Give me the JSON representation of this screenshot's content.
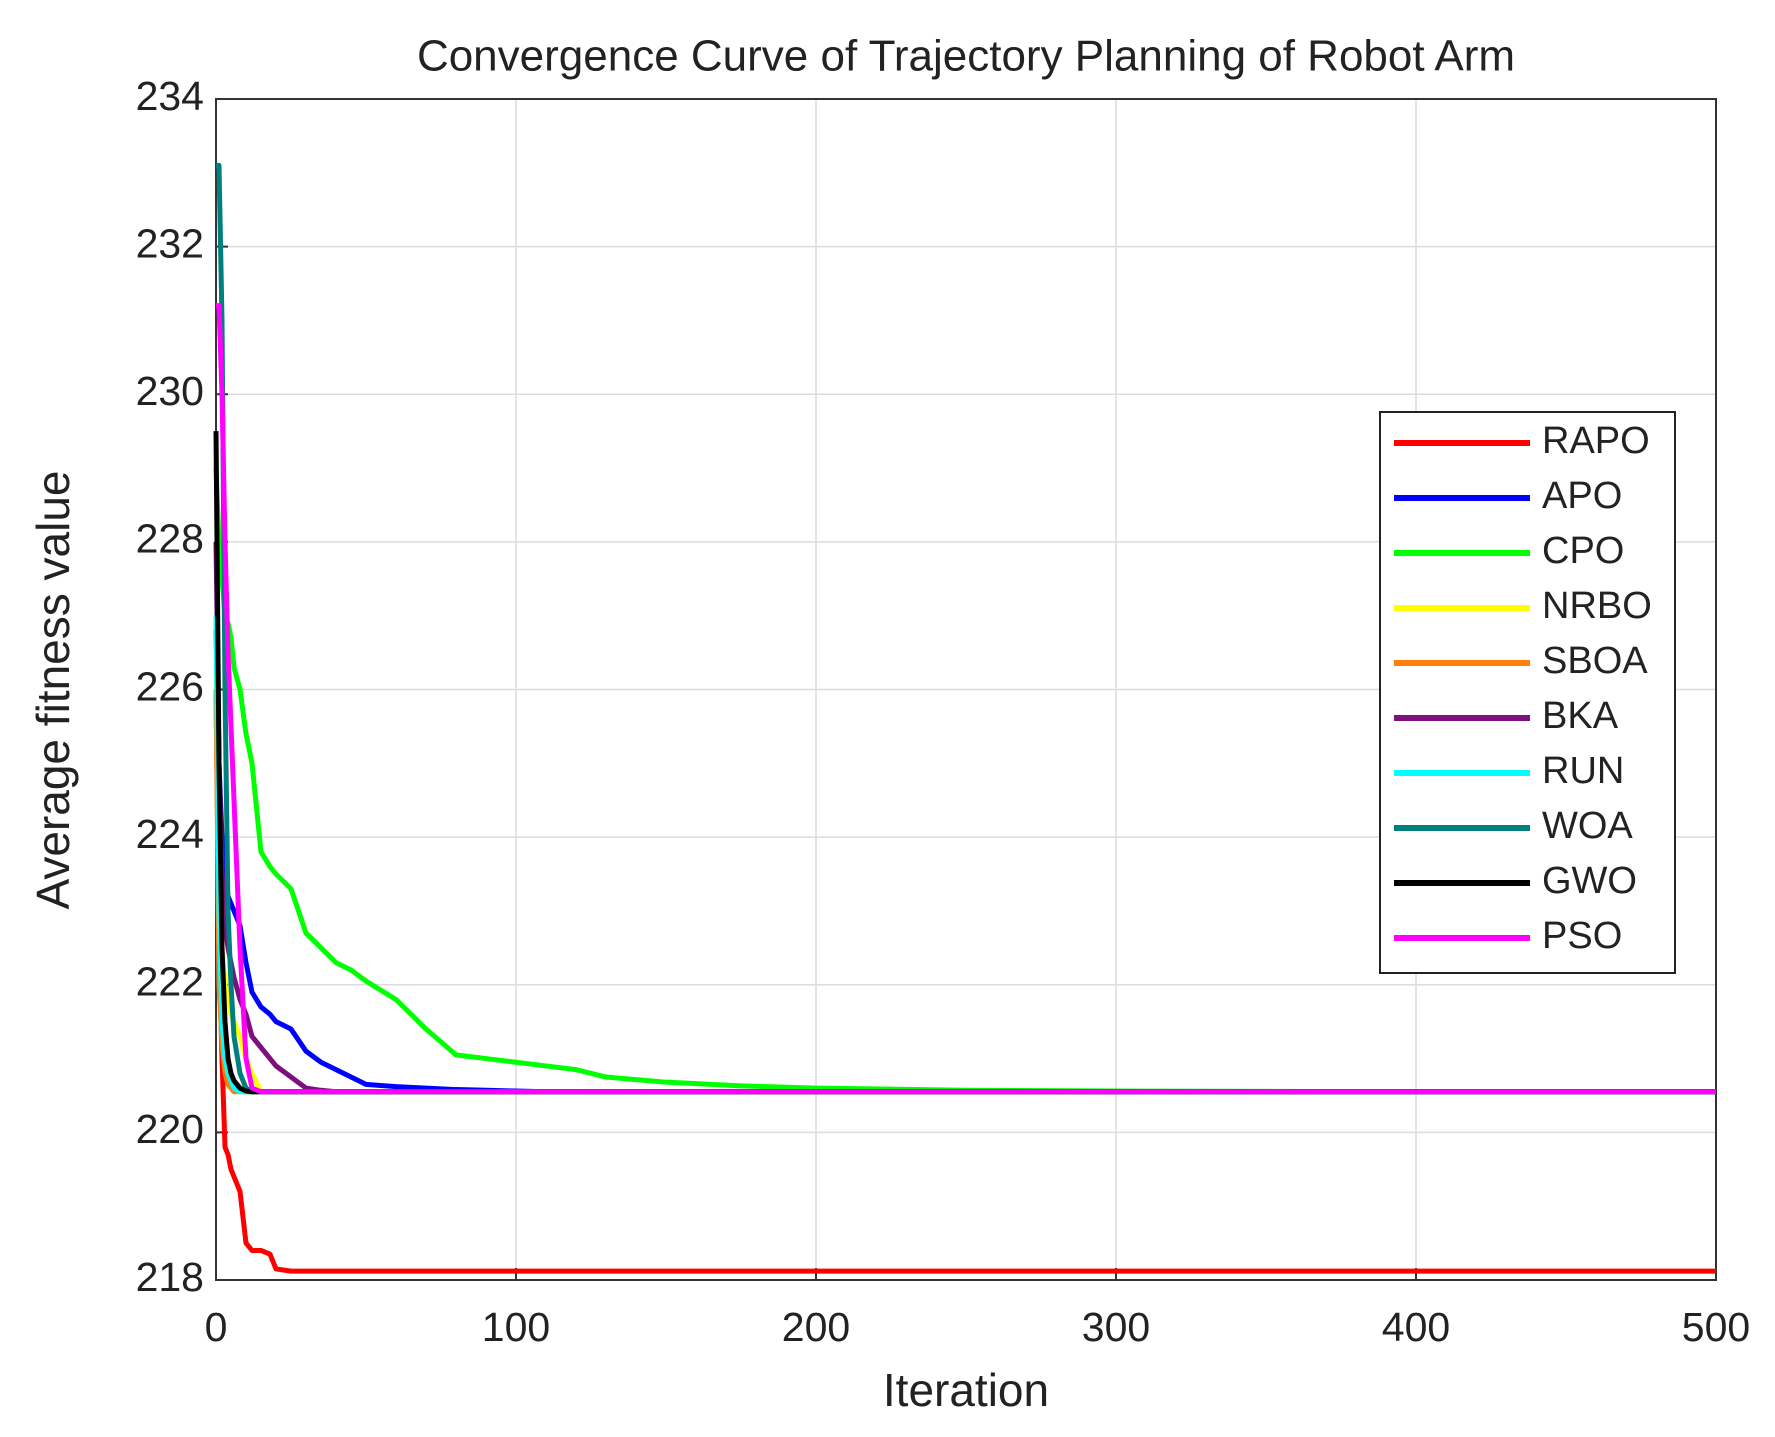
{
  "chart_data": {
    "type": "line",
    "title": "Convergence Curve of Trajectory Planning of Robot Arm",
    "x_label": "Iteration",
    "y_label": "Average fitness value",
    "x": [
      0,
      1,
      2,
      3,
      4,
      5,
      6,
      8,
      10,
      12,
      15,
      18,
      20,
      25,
      30,
      35,
      40,
      45,
      50,
      60,
      70,
      80,
      90,
      100,
      110,
      120,
      130,
      150,
      175,
      200,
      250,
      300,
      400,
      500
    ],
    "xlim": [
      0,
      500
    ],
    "xticks": [
      0,
      100,
      200,
      300,
      400,
      500
    ],
    "ylim": [
      218,
      234
    ],
    "yticks": [
      218,
      220,
      222,
      224,
      226,
      228,
      230,
      232,
      234
    ],
    "grid": true,
    "legend": "right",
    "series": [
      {
        "name": "RAPO",
        "color": "#ff0000",
        "values": [
          226,
          222.5,
          221,
          219.8,
          219.7,
          219.5,
          219.4,
          219.2,
          218.5,
          218.4,
          218.4,
          218.35,
          218.15,
          218.12,
          218.12,
          218.12,
          218.12,
          218.12,
          218.12,
          218.12,
          218.12,
          218.12,
          218.12,
          218.12,
          218.12,
          218.12,
          218.12,
          218.12,
          218.12,
          218.12,
          218.12,
          218.12,
          218.12,
          218.12
        ]
      },
      {
        "name": "APO",
        "color": "#0000ff",
        "values": [
          226.8,
          225,
          224,
          223.5,
          223.2,
          223.1,
          223,
          222.8,
          222.3,
          221.9,
          221.7,
          221.6,
          221.5,
          221.4,
          221.1,
          220.95,
          220.85,
          220.75,
          220.65,
          220.62,
          220.6,
          220.58,
          220.57,
          220.56,
          220.55,
          220.55,
          220.55,
          220.55,
          220.55,
          220.55,
          220.55,
          220.55,
          220.55,
          220.55
        ]
      },
      {
        "name": "CPO",
        "color": "#00ff00",
        "values": [
          229,
          228,
          227.5,
          227,
          226.9,
          226.7,
          226.3,
          226,
          225.4,
          225,
          223.8,
          223.6,
          223.5,
          223.3,
          222.7,
          222.5,
          222.3,
          222.2,
          222.05,
          221.8,
          221.4,
          221.05,
          221,
          220.95,
          220.9,
          220.85,
          220.75,
          220.68,
          220.63,
          220.6,
          220.57,
          220.56,
          220.55,
          220.55
        ]
      },
      {
        "name": "NRBO",
        "color": "#ffff00",
        "values": [
          226.5,
          224,
          222.5,
          222,
          221.8,
          221.6,
          221.5,
          221.3,
          221,
          220.8,
          220.55,
          220.55,
          220.55,
          220.55,
          220.55,
          220.55,
          220.55,
          220.55,
          220.55,
          220.55,
          220.55,
          220.55,
          220.55,
          220.55,
          220.55,
          220.55,
          220.55,
          220.55,
          220.55,
          220.55,
          220.55,
          220.55,
          220.55,
          220.55
        ]
      },
      {
        "name": "SBOA",
        "color": "#ff7f0e",
        "values": [
          226,
          222,
          221.2,
          220.8,
          220.65,
          220.6,
          220.55,
          220.55,
          220.55,
          220.55,
          220.55,
          220.55,
          220.55,
          220.55,
          220.55,
          220.55,
          220.55,
          220.55,
          220.55,
          220.55,
          220.55,
          220.55,
          220.55,
          220.55,
          220.55,
          220.55,
          220.55,
          220.55,
          220.55,
          220.55,
          220.55,
          220.55,
          220.55,
          220.55
        ]
      },
      {
        "name": "BKA",
        "color": "#7e0f7e",
        "values": [
          228,
          225,
          223.5,
          222.8,
          222.5,
          222.3,
          222.1,
          221.8,
          221.6,
          221.3,
          221.15,
          221,
          220.9,
          220.75,
          220.6,
          220.57,
          220.55,
          220.55,
          220.55,
          220.55,
          220.55,
          220.55,
          220.55,
          220.55,
          220.55,
          220.55,
          220.55,
          220.55,
          220.55,
          220.55,
          220.55,
          220.55,
          220.55,
          220.55
        ]
      },
      {
        "name": "RUN",
        "color": "#00ffff",
        "values": [
          227,
          223,
          221.5,
          221,
          220.8,
          220.7,
          220.6,
          220.55,
          220.55,
          220.55,
          220.55,
          220.55,
          220.55,
          220.55,
          220.55,
          220.55,
          220.55,
          220.55,
          220.55,
          220.55,
          220.55,
          220.55,
          220.55,
          220.55,
          220.55,
          220.55,
          220.55,
          220.55,
          220.55,
          220.55,
          220.55,
          220.55,
          220.55,
          220.55
        ]
      },
      {
        "name": "WOA",
        "color": "#007f7f",
        "values": [
          233.1,
          233.1,
          231,
          226,
          223,
          222,
          221.3,
          220.8,
          220.6,
          220.55,
          220.55,
          220.55,
          220.55,
          220.55,
          220.55,
          220.55,
          220.55,
          220.55,
          220.55,
          220.55,
          220.55,
          220.55,
          220.55,
          220.55,
          220.55,
          220.55,
          220.55,
          220.55,
          220.55,
          220.55,
          220.55,
          220.55,
          220.55,
          220.55
        ]
      },
      {
        "name": "GWO",
        "color": "#000000",
        "values": [
          229.5,
          225,
          222.5,
          221.5,
          221,
          220.8,
          220.7,
          220.6,
          220.56,
          220.55,
          220.55,
          220.55,
          220.55,
          220.55,
          220.55,
          220.55,
          220.55,
          220.55,
          220.55,
          220.55,
          220.55,
          220.55,
          220.55,
          220.55,
          220.55,
          220.55,
          220.55,
          220.55,
          220.55,
          220.55,
          220.55,
          220.55,
          220.55,
          220.55
        ]
      },
      {
        "name": "PSO",
        "color": "#ff00ff",
        "values": [
          231.2,
          231.2,
          230,
          228,
          226.5,
          225.5,
          224.5,
          222.5,
          221,
          220.6,
          220.55,
          220.55,
          220.55,
          220.55,
          220.55,
          220.55,
          220.55,
          220.55,
          220.55,
          220.55,
          220.55,
          220.55,
          220.55,
          220.55,
          220.55,
          220.55,
          220.55,
          220.55,
          220.55,
          220.55,
          220.55,
          220.55,
          220.55,
          220.55
        ]
      }
    ]
  }
}
